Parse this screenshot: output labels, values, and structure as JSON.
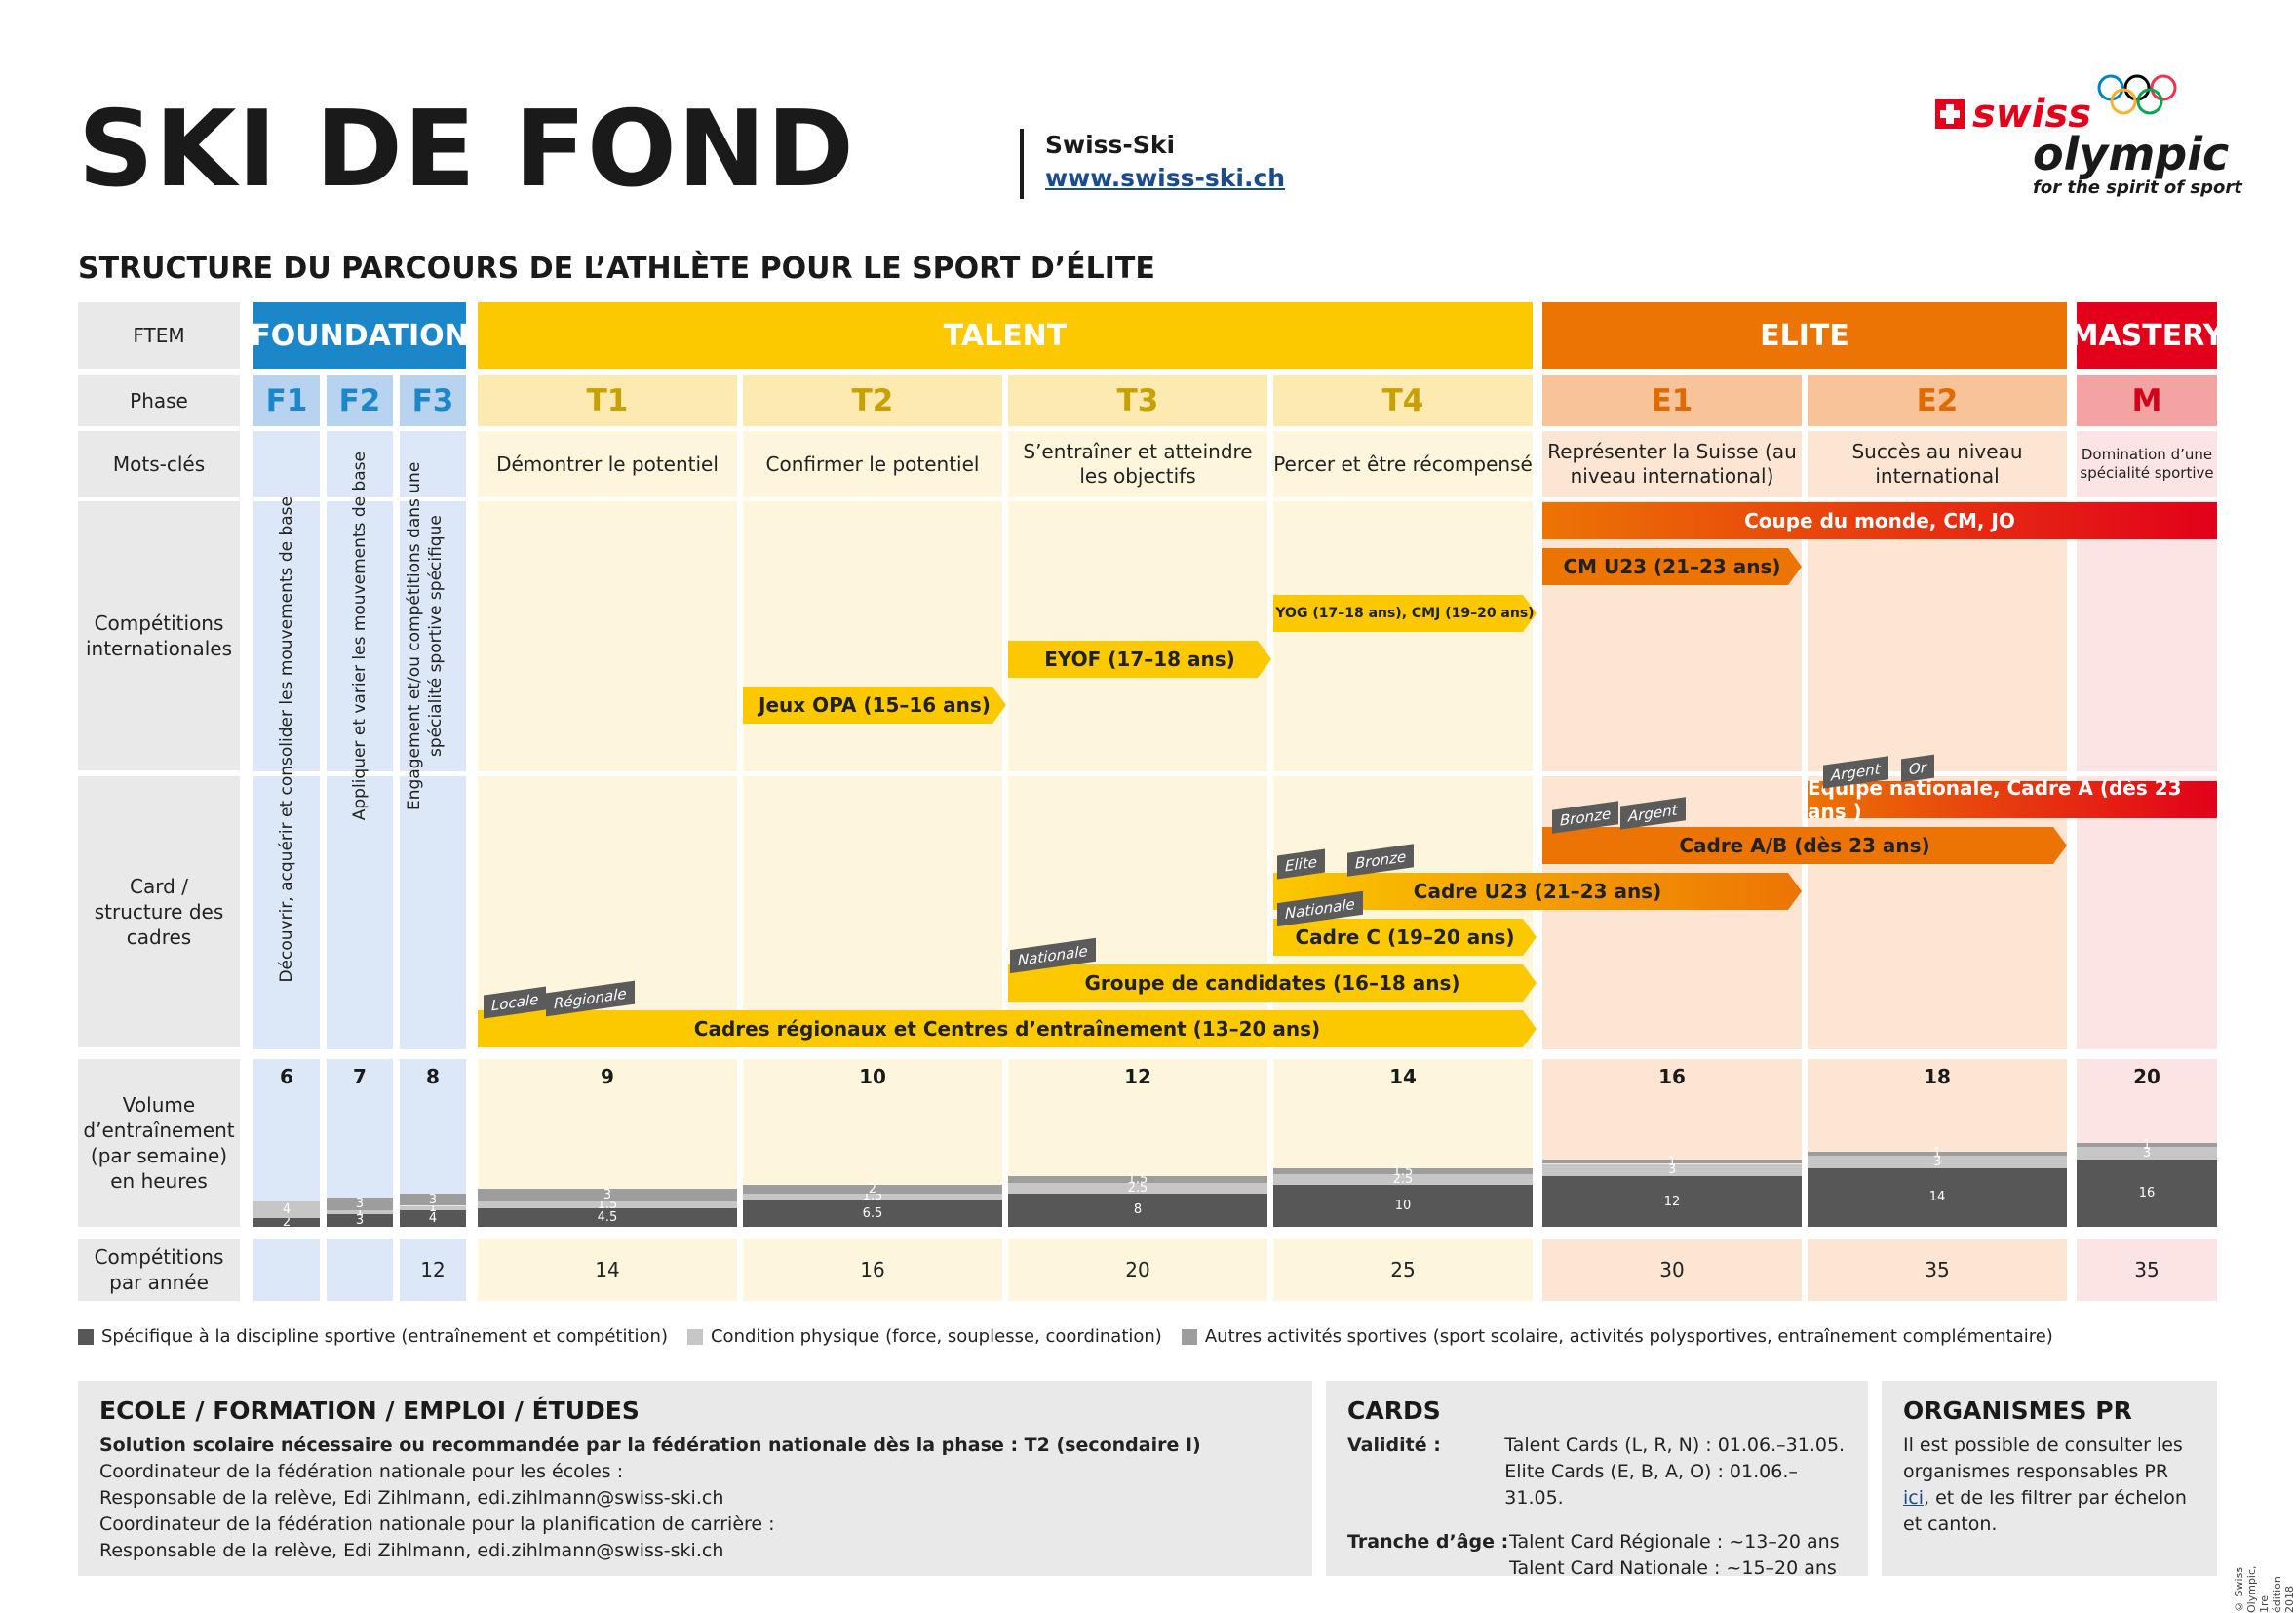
{
  "header": {
    "title": "SKI DE FOND",
    "org_name": "Swiss-Ski",
    "org_url": "www.swiss-ski.ch",
    "subtitle": "STRUCTURE DU PARCOURS DE L’ATHLÈTE POUR LE SPORT D’ÉLITE",
    "logo_word1": "swiss",
    "logo_word2": "olympic",
    "logo_tagline": "for the spirit of sport"
  },
  "rows": {
    "ftem": "FTEM",
    "phase": "Phase",
    "keywords": "Mots-clés",
    "intl": "Compétitions internationales",
    "cards": "Card / structure des cadres",
    "volume": "Volume d’entraînement (par semaine) en heures",
    "competitions": "Compétitions par année"
  },
  "ftem": {
    "foundation": "FOUNDATION",
    "talent": "TALENT",
    "elite": "ELITE",
    "mastery": "MASTERY"
  },
  "phases": [
    "F1",
    "F2",
    "F3",
    "T1",
    "T2",
    "T3",
    "T4",
    "E1",
    "E2",
    "M"
  ],
  "keywords": {
    "f1": "Découvrir, acquérir et consolider les mouvements de base",
    "f2": "Appliquer et varier les mouvements de base",
    "f3": "Engagement et/ou compétitions dans une spécialité sportive spécifique",
    "t1": "Démontrer le potentiel",
    "t2": "Confirmer le potentiel",
    "t3": "S’entraîner et atteindre les objectifs",
    "t4": "Percer et être récompensé",
    "e1": "Représenter la Suisse (au niveau international)",
    "e2": "Succès au niveau international",
    "m": "Domination d’une spécialité sportive"
  },
  "intl_bars": {
    "coupe": "Coupe du monde, CM, JO",
    "cm_u23": "CM U23 (21–23 ans)",
    "yog": "YOG (17–18 ans), CMJ (19–20 ans)",
    "eyof": "EYOF (17–18 ans)",
    "opa": "Jeux OPA (15–16 ans)"
  },
  "card_bars": {
    "equipe": "Equipe nationale, Cadre A (dès 23 ans )",
    "cadre_ab": "Cadre A/B (dès 23 ans)",
    "cadre_u23": "Cadre U23 (21–23 ans)",
    "cadre_c": "Cadre C (19–20 ans)",
    "groupe": "Groupe de candidates (16–18 ans)",
    "regionaux": "Cadres régionaux et Centres d’entraînement (13–20 ans)"
  },
  "tags": {
    "argent_a": "Argent",
    "or": "Or",
    "bronze_ab": "Bronze",
    "argent_ab": "Argent",
    "elite": "Elite",
    "bronze_u23": "Bronze",
    "nationale_c": "Nationale",
    "nationale_g": "Nationale",
    "locale": "Locale",
    "regionale": "Régionale"
  },
  "volume": {
    "totals": [
      "6",
      "7",
      "8",
      "9",
      "10",
      "12",
      "14",
      "16",
      "18",
      "20"
    ],
    "specific": [
      "2",
      "3",
      "4",
      "4.5",
      "6.5",
      "8",
      "10",
      "12",
      "14",
      "16"
    ],
    "physical": [
      "4",
      "1",
      "1",
      "1.5",
      "1.5",
      "2.5",
      "2.5",
      "3",
      "3",
      "3"
    ],
    "other": [
      "",
      "3",
      "3",
      "3",
      "2",
      "1.5",
      "1.5",
      "1",
      "1",
      "1"
    ]
  },
  "competitions": [
    "",
    "",
    "12",
    "14",
    "16",
    "20",
    "25",
    "30",
    "35",
    "35"
  ],
  "legend": {
    "specific": "Spécifique à la discipline sportive (entraînement et compétition)",
    "physical": "Condition physique (force, souplesse, coordination)",
    "other": "Autres activités sportives (sport scolaire, activités polysportives, entraînement complémentaire)"
  },
  "school": {
    "title": "ECOLE / FORMATION / EMPLOI / ÉTUDES",
    "bold_line": "Solution scolaire nécessaire ou recommandée par la fédération nationale dès la phase : T2 (secondaire I)",
    "line1": "Coordinateur de la fédération nationale pour les écoles :",
    "line2": "Responsable de la relève, Edi Zihlmann, edi.zihlmann@swiss-ski.ch",
    "line3": "Coordinateur de la fédération nationale pour la planification de carrière :",
    "line4": "Responsable de la relève, Edi Zihlmann, edi.zihlmann@swiss-ski.ch"
  },
  "cards_box": {
    "title": "CARDS",
    "validity_label": "Validité :",
    "validity1": "Talent Cards (L, R, N) : 01.06.–31.05.",
    "validity2": "Elite Cards (E, B, A, O) : 01.06.–31.05.",
    "age_label": "Tranche d’âge :",
    "age1": "Talent Card Régionale : ~13–20 ans",
    "age2": "Talent Card Nationale : ~15–20 ans"
  },
  "pr_box": {
    "title": "ORGANISMES PR",
    "text_before": "Il est possible de consulter les organismes responsables PR ",
    "link": "ici",
    "text_after": ", et de les filtrer par échelon et canton."
  },
  "copyright": "© Swiss Olympic, 1re édition 2018",
  "colors": {
    "foundation": "#1b87c9",
    "talent": "#fcc800",
    "elite": "#ec7404",
    "mastery": "#e2001a",
    "dark_gray": "#575757",
    "light_gray": "#c6c6c6",
    "mid_gray": "#9d9d9d"
  }
}
